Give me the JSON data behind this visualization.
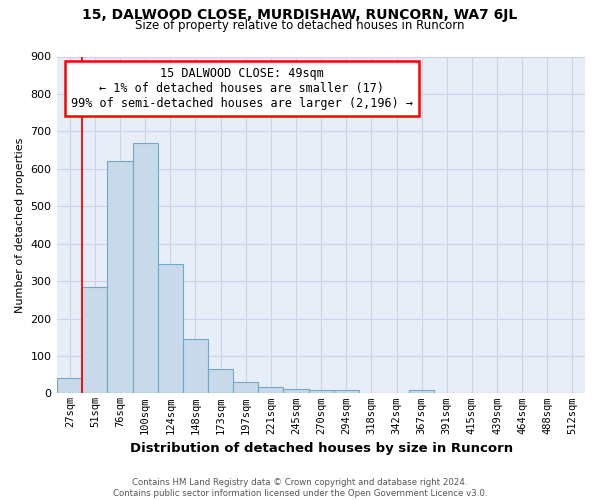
{
  "title1": "15, DALWOOD CLOSE, MURDISHAW, RUNCORN, WA7 6JL",
  "title2": "Size of property relative to detached houses in Runcorn",
  "xlabel": "Distribution of detached houses by size in Runcorn",
  "ylabel": "Number of detached properties",
  "footer1": "Contains HM Land Registry data © Crown copyright and database right 2024.",
  "footer2": "Contains public sector information licensed under the Open Government Licence v3.0.",
  "categories": [
    "27sqm",
    "51sqm",
    "76sqm",
    "100sqm",
    "124sqm",
    "148sqm",
    "173sqm",
    "197sqm",
    "221sqm",
    "245sqm",
    "270sqm",
    "294sqm",
    "318sqm",
    "342sqm",
    "367sqm",
    "391sqm",
    "415sqm",
    "439sqm",
    "464sqm",
    "488sqm",
    "512sqm"
  ],
  "values": [
    42,
    283,
    620,
    670,
    345,
    145,
    65,
    30,
    18,
    12,
    10,
    10,
    0,
    0,
    8,
    0,
    0,
    0,
    0,
    0,
    0
  ],
  "bar_color": "#c8d9ea",
  "bar_edge_color": "#6fa8c8",
  "red_line_bar_index": 1,
  "annotation_line1": "15 DALWOOD CLOSE: 49sqm",
  "annotation_line2": "← 1% of detached houses are smaller (17)",
  "annotation_line3": "99% of semi-detached houses are larger (2,196) →",
  "annotation_box_color": "white",
  "annotation_box_edge_color": "red",
  "ylim": [
    0,
    900
  ],
  "yticks": [
    0,
    100,
    200,
    300,
    400,
    500,
    600,
    700,
    800,
    900
  ],
  "grid_color": "#c8d4e8",
  "background_color": "#ffffff",
  "ax_background_color": "#e8eef8"
}
